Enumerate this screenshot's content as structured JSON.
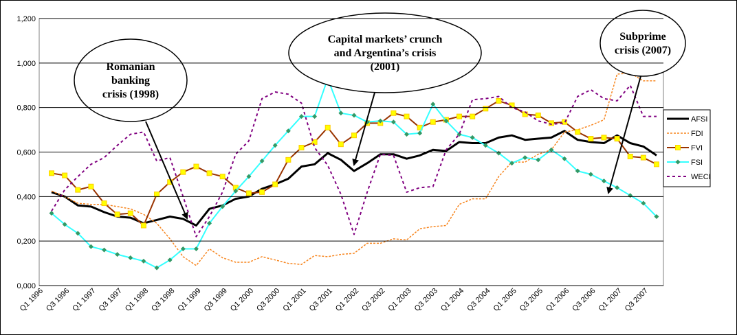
{
  "chart_data": {
    "type": "line",
    "categories": [
      "Q1 1996",
      null,
      "Q3 1996",
      null,
      "Q1 1997",
      null,
      "Q3 1997",
      null,
      "Q1 1998",
      null,
      "Q3 1998",
      null,
      "Q1 1999",
      null,
      "Q3 1999",
      null,
      "Q1 2000",
      null,
      "Q3 2000",
      null,
      "Q1 2001",
      null,
      "Q3 2001",
      null,
      "Q1 2002",
      null,
      "Q3 2002",
      null,
      "Q1 2003",
      null,
      "Q3 2003",
      null,
      "Q1 2004",
      null,
      "Q3 2004",
      null,
      "Q1 2005",
      null,
      "Q3 2005",
      null,
      "Q1 2006",
      null,
      "Q3 2006",
      null,
      "Q1 2007",
      null,
      "Q3 2007"
    ],
    "series": [
      {
        "name": "AFSI",
        "color": "#000000",
        "values": [
          0.42,
          0.4,
          0.36,
          0.355,
          0.33,
          0.31,
          0.305,
          0.28,
          0.295,
          0.31,
          0.3,
          0.27,
          0.345,
          0.36,
          0.39,
          0.4,
          0.435,
          0.455,
          0.48,
          0.535,
          0.545,
          0.595,
          0.565,
          0.515,
          0.55,
          0.59,
          0.59,
          0.57,
          0.585,
          0.61,
          0.605,
          0.645,
          0.64,
          0.64,
          0.665,
          0.675,
          0.655,
          0.66,
          0.665,
          0.695,
          0.655,
          0.645,
          0.64,
          0.675,
          0.64,
          0.625,
          0.585
        ]
      },
      {
        "name": "FDI",
        "color": "#f7851e",
        "values": [
          0.425,
          0.4,
          0.37,
          0.365,
          0.365,
          0.355,
          0.345,
          0.32,
          0.28,
          0.21,
          0.13,
          0.09,
          0.165,
          0.125,
          0.105,
          0.105,
          0.13,
          0.115,
          0.1,
          0.095,
          0.135,
          0.13,
          0.14,
          0.145,
          0.19,
          0.19,
          0.21,
          0.205,
          0.255,
          0.265,
          0.27,
          0.365,
          0.39,
          0.39,
          0.49,
          0.555,
          0.555,
          0.59,
          0.61,
          0.69,
          0.7,
          0.72,
          0.745,
          0.95,
          0.955,
          0.92,
          0.92
        ]
      },
      {
        "name": "FVI",
        "color": "#993300",
        "values": [
          0.505,
          0.495,
          0.43,
          0.445,
          0.37,
          0.32,
          0.325,
          0.27,
          0.41,
          0.465,
          0.51,
          0.535,
          0.505,
          0.49,
          0.44,
          0.415,
          0.42,
          0.455,
          0.565,
          0.62,
          0.645,
          0.71,
          0.635,
          0.675,
          0.73,
          0.73,
          0.775,
          0.76,
          0.71,
          0.735,
          0.745,
          0.76,
          0.76,
          0.795,
          0.83,
          0.81,
          0.77,
          0.765,
          0.73,
          0.735,
          0.69,
          0.66,
          0.665,
          0.66,
          0.58,
          0.575,
          0.545
        ]
      },
      {
        "name": "FSI",
        "color": "#33ffff",
        "values": [
          0.325,
          0.275,
          0.235,
          0.175,
          0.16,
          0.14,
          0.125,
          0.11,
          0.08,
          0.115,
          0.165,
          0.165,
          0.28,
          0.355,
          0.425,
          0.49,
          0.56,
          0.63,
          0.695,
          0.76,
          0.76,
          0.93,
          0.775,
          0.765,
          0.735,
          0.74,
          0.735,
          0.68,
          0.685,
          0.815,
          0.74,
          0.68,
          0.665,
          0.63,
          0.595,
          0.55,
          0.575,
          0.565,
          0.61,
          0.57,
          0.515,
          0.5,
          0.47,
          0.44,
          0.405,
          0.37,
          0.31
        ]
      },
      {
        "name": "WECI",
        "color": "#800080",
        "values": [
          0.335,
          0.43,
          0.49,
          0.545,
          0.575,
          0.63,
          0.68,
          0.69,
          0.56,
          0.575,
          0.4,
          0.22,
          0.31,
          0.42,
          0.59,
          0.65,
          0.84,
          0.87,
          0.86,
          0.82,
          0.62,
          0.54,
          0.41,
          0.23,
          0.42,
          0.59,
          0.585,
          0.42,
          0.44,
          0.445,
          0.61,
          0.68,
          0.835,
          0.84,
          0.85,
          0.8,
          0.78,
          0.74,
          0.725,
          0.73,
          0.85,
          0.88,
          0.84,
          0.83,
          0.9,
          0.76,
          0.76
        ]
      }
    ],
    "ylim": [
      0,
      1.2
    ],
    "yticks": [
      {
        "value": 0,
        "label": "0,000"
      },
      {
        "value": 0.2,
        "label": "0,200"
      },
      {
        "value": 0.4,
        "label": "0,400"
      },
      {
        "value": 0.6,
        "label": "0,600"
      },
      {
        "value": 0.8,
        "label": "0,800"
      },
      {
        "value": 1.0,
        "label": "1,000"
      },
      {
        "value": 1.2,
        "label": "1,200"
      }
    ],
    "grid": true,
    "legend": "right",
    "annotations": [
      {
        "lines": [
          "Romanian",
          "banking",
          "crisis (1998)"
        ]
      },
      {
        "lines": [
          "Capital markets’ crunch",
          "and Argentina’s crisis",
          "(2001)"
        ]
      },
      {
        "lines": [
          "Subprime",
          "crisis (2007)"
        ]
      }
    ]
  }
}
